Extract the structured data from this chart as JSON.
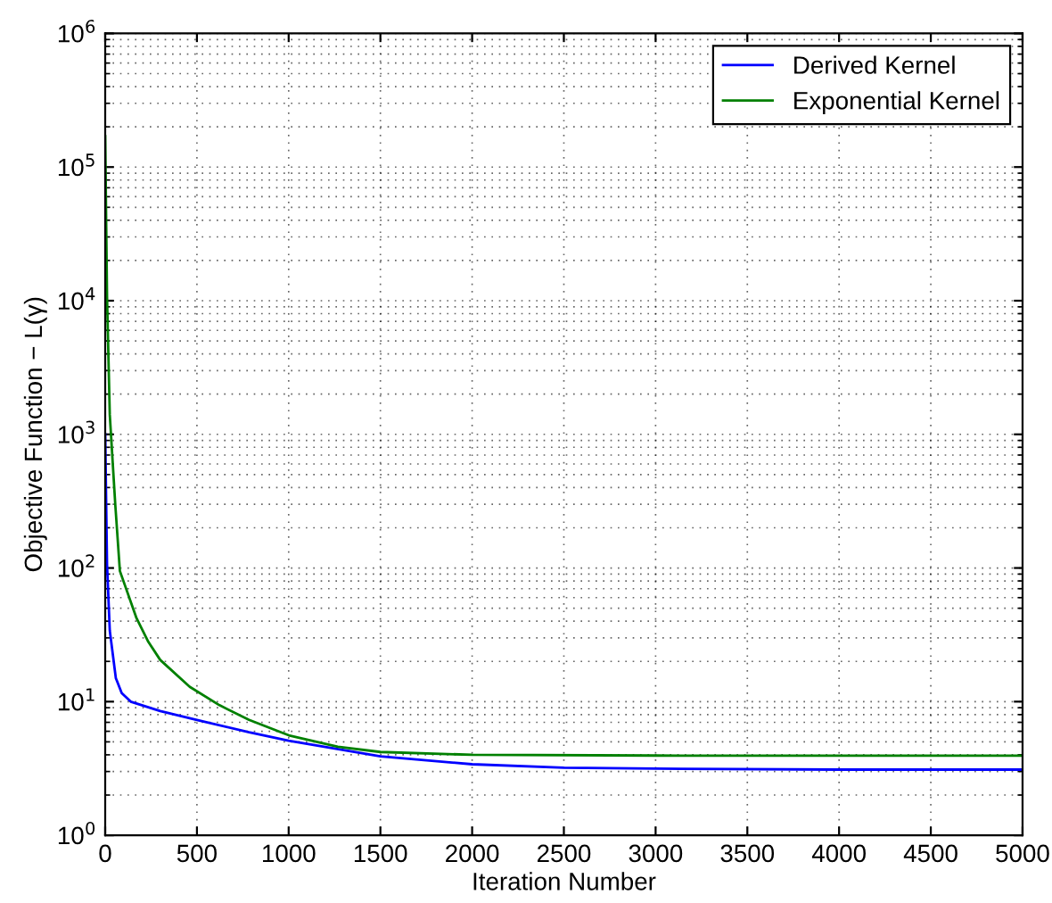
{
  "chart_data": {
    "type": "line",
    "xlabel": "Iteration Number",
    "ylabel": "Objective Function − L(γ)",
    "log": "y",
    "grid": true,
    "legend": "top right",
    "xlim": [
      0,
      5000
    ],
    "xticks": [
      0,
      500,
      1000,
      1500,
      2000,
      2500,
      3000,
      3500,
      4000,
      4500,
      5000
    ],
    "ylim": [
      1,
      1000000
    ],
    "yticks": [
      {
        "value": 1,
        "label": "10$^{0}$"
      },
      {
        "value": 10,
        "label": "10$^{1}$"
      },
      {
        "value": 100,
        "label": "10$^{2}$"
      },
      {
        "value": 1000,
        "label": "10$^{3}$"
      },
      {
        "value": 10000,
        "label": "10$^{4}$"
      },
      {
        "value": 100000,
        "label": "10$^{5}$"
      },
      {
        "value": 1000000,
        "label": "10$^{6}$"
      }
    ],
    "series": [
      {
        "name": "Derived Kernel",
        "color": "#0000ff",
        "x": [
          0,
          10,
          25,
          58,
          90,
          139,
          300,
          500,
          784,
          1000,
          1500,
          2000,
          2500,
          3000,
          4000,
          5000
        ],
        "values": [
          1000,
          106,
          34,
          15,
          11.6,
          10,
          8.5,
          7.3,
          5.9,
          5.1,
          3.9,
          3.4,
          3.2,
          3.15,
          3.1,
          3.1
        ]
      },
      {
        "name": "Exponential Kernel",
        "color": "#008000",
        "x": [
          0,
          10,
          25,
          55,
          80,
          171,
          235,
          300,
          461,
          623,
          784,
          1000,
          1268,
          1500,
          2000,
          3000,
          4000,
          5000
        ],
        "values": [
          170000,
          10700,
          1400,
          297,
          95,
          42,
          28,
          20.5,
          12.9,
          9.4,
          7.3,
          5.6,
          4.6,
          4.2,
          4.0,
          3.95,
          3.94,
          3.94
        ]
      }
    ]
  }
}
